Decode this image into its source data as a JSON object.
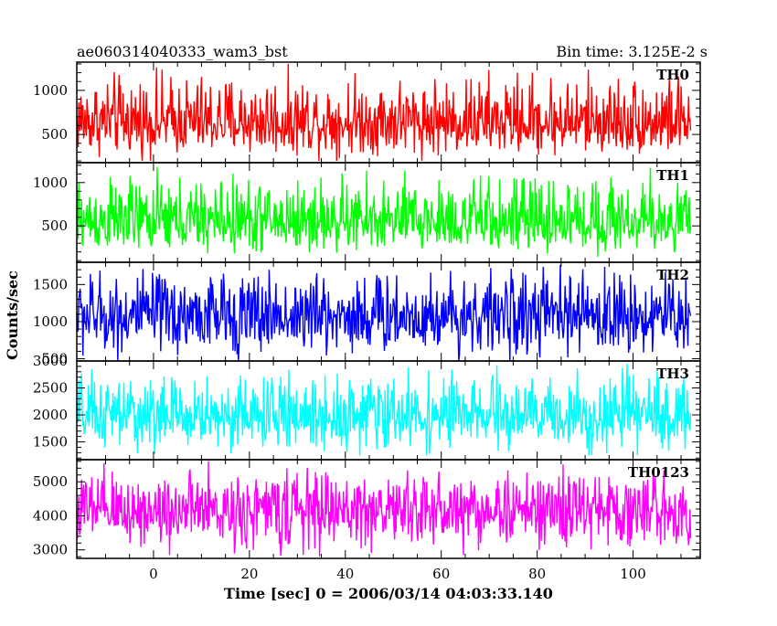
{
  "chart_data": {
    "type": "line",
    "title": "ae060314040333_wam3_bst",
    "subtitle": "Bin time: 3.125E-2 s",
    "xlabel": "Time [sec] 0 = 2006/03/14 04:03:33.140",
    "ylabel": "Counts/sec",
    "xlim": [
      -16,
      114
    ],
    "xticks": [
      0,
      20,
      40,
      60,
      80,
      100
    ],
    "grid": false,
    "panels": [
      {
        "name": "TH0",
        "color": "#ff0000",
        "ylim": [
          180,
          1320
        ],
        "yticks": [
          500,
          1000
        ],
        "mean": 620,
        "min": 200,
        "max": 1300
      },
      {
        "name": "TH1",
        "color": "#00ff00",
        "ylim": [
          80,
          1230
        ],
        "yticks": [
          500,
          1000
        ],
        "mean": 540,
        "min": 120,
        "max": 1180
      },
      {
        "name": "TH2",
        "color": "#0000ff",
        "ylim": [
          470,
          1800
        ],
        "yticks": [
          500,
          1000,
          1500
        ],
        "mean": 1080,
        "min": 420,
        "max": 1800
      },
      {
        "name": "TH3",
        "color": "#00ffff",
        "ylim": [
          1170,
          3000
        ],
        "yticks": [
          1500,
          2000,
          2500,
          3000
        ],
        "mean": 1950,
        "min": 1250,
        "max": 2950
      },
      {
        "name": "TH0123",
        "color": "#ff00ff",
        "ylim": [
          2750,
          5650
        ],
        "yticks": [
          3000,
          4000,
          5000
        ],
        "mean": 4150,
        "min": 2800,
        "max": 5600
      }
    ]
  }
}
